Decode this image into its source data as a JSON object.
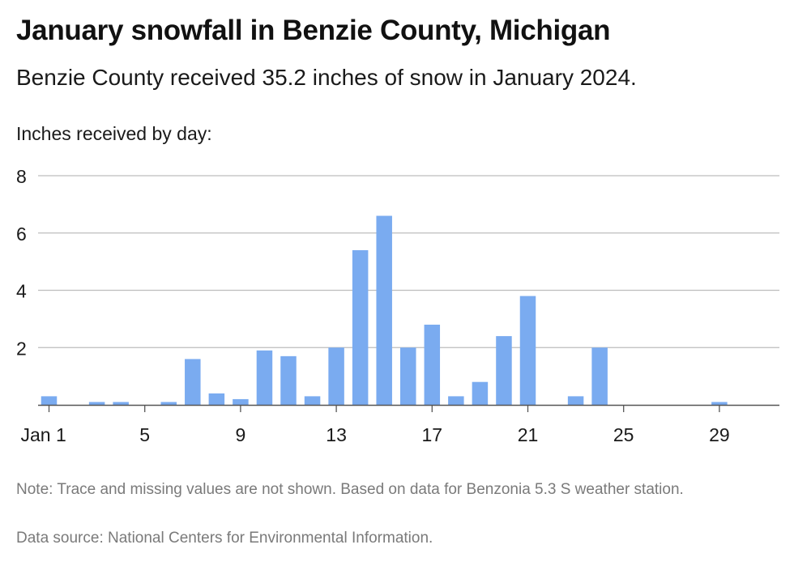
{
  "header": {
    "title": "January snowfall in Benzie County, Michigan",
    "subtitle": "Benzie County received 35.2 inches of snow in January 2024."
  },
  "footer": {
    "note": "Note: Trace and missing values are not shown. Based on data for Benzonia 5.3 S weather station.",
    "source": "Data source: National Centers for Environmental Information."
  },
  "chart_data": {
    "type": "bar",
    "title": "January snowfall in Benzie County, Michigan",
    "subtitle": "Benzie County received 35.2 inches of snow in January 2024.",
    "ylabel": "Inches received by day:",
    "xlabel": "",
    "x": [
      1,
      2,
      3,
      4,
      5,
      6,
      7,
      8,
      9,
      10,
      11,
      12,
      13,
      14,
      15,
      16,
      17,
      18,
      19,
      20,
      21,
      22,
      23,
      24,
      25,
      26,
      27,
      28,
      29,
      30,
      31
    ],
    "values": [
      0.3,
      0,
      0.1,
      0.1,
      0,
      0.1,
      1.6,
      0.4,
      0.2,
      1.9,
      1.7,
      0.3,
      2.0,
      5.4,
      6.6,
      2.0,
      2.8,
      0.3,
      0.8,
      2.4,
      3.8,
      0,
      0.3,
      2.0,
      0,
      0,
      0,
      0,
      0.1,
      0,
      0
    ],
    "ylim": [
      0,
      8
    ],
    "yticks": [
      2,
      4,
      6,
      8
    ],
    "xticks": [
      {
        "day": 1,
        "label": "Jan 1"
      },
      {
        "day": 5,
        "label": "5"
      },
      {
        "day": 9,
        "label": "9"
      },
      {
        "day": 13,
        "label": "13"
      },
      {
        "day": 17,
        "label": "17"
      },
      {
        "day": 21,
        "label": "21"
      },
      {
        "day": 25,
        "label": "25"
      },
      {
        "day": 29,
        "label": "29"
      }
    ],
    "grid": "horizontal",
    "bar_color": "#7aabf0",
    "grid_color": "#bdbdbd",
    "axis_color": "#555555"
  }
}
